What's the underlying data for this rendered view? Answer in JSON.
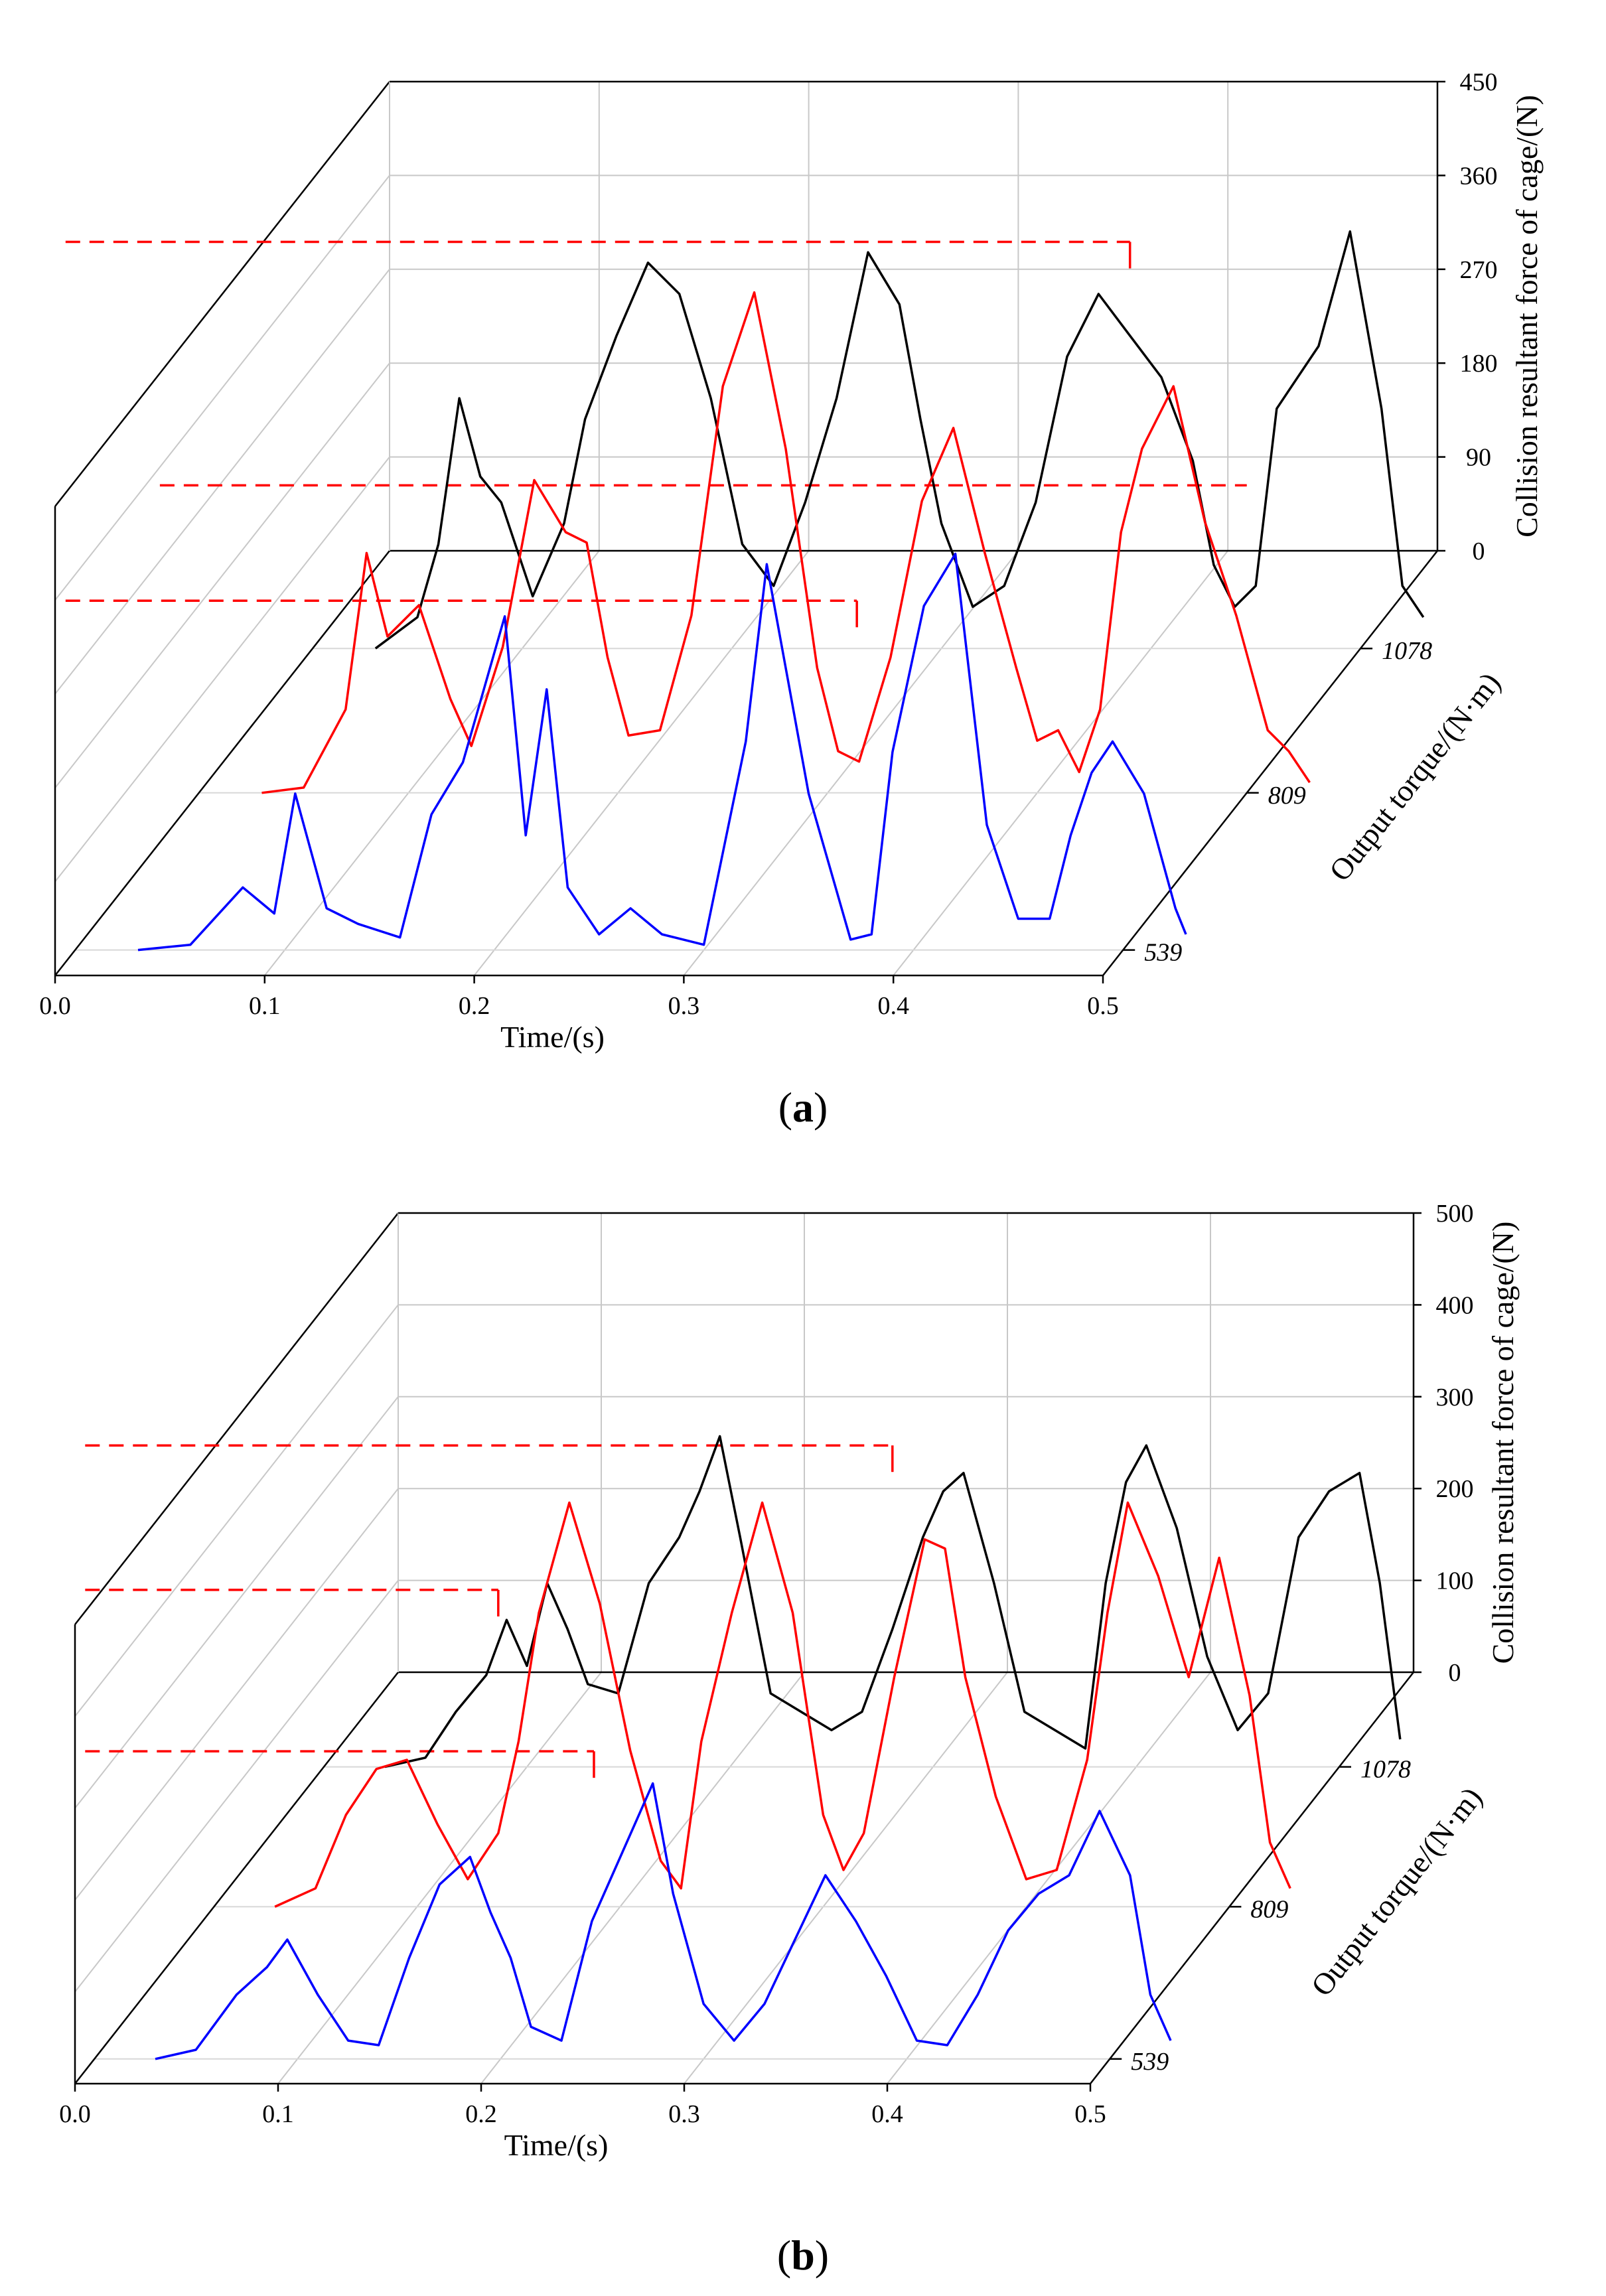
{
  "figure": {
    "panels": [
      "(a)",
      "(b)"
    ]
  },
  "chart_data": [
    {
      "panel": "a",
      "caption_letter": "a",
      "type": "line",
      "title": "",
      "xlabel": "Time/(s)",
      "ylabel": "Collision resultant force of cage/(N)",
      "zlabel": "Output torque/(N·m)",
      "xlim": [
        0,
        0.5
      ],
      "ylim": [
        0,
        450
      ],
      "x_ticks": [
        "0.0",
        "0.1",
        "0.2",
        "0.3",
        "0.4",
        "0.5"
      ],
      "y_ticks": [
        "0",
        "90",
        "180",
        "270",
        "360",
        "450"
      ],
      "categories": [
        "539",
        "809",
        "1078"
      ],
      "series": [
        {
          "name": "539",
          "color": "#0000ff",
          "dash_level": 335,
          "dash_end_t": 0.373,
          "x": [
            0.0,
            0.025,
            0.05,
            0.065,
            0.075,
            0.09,
            0.105,
            0.125,
            0.14,
            0.155,
            0.165,
            0.175,
            0.185,
            0.195,
            0.205,
            0.22,
            0.235,
            0.25,
            0.27,
            0.29,
            0.3,
            0.31,
            0.32,
            0.33,
            0.34,
            0.35,
            0.36,
            0.375,
            0.39,
            0.405,
            0.42,
            0.435,
            0.445,
            0.455,
            0.465,
            0.48,
            0.495,
            0.5
          ],
          "values": [
            0,
            5,
            60,
            35,
            150,
            40,
            25,
            12,
            130,
            180,
            250,
            320,
            110,
            250,
            60,
            15,
            40,
            15,
            5,
            200,
            370,
            260,
            150,
            80,
            10,
            15,
            190,
            330,
            380,
            120,
            30,
            30,
            110,
            170,
            200,
            150,
            40,
            15
          ]
        },
        {
          "name": "809",
          "color": "#ff0000",
          "dash_level": 295,
          "dash_end_t": 0.0,
          "x": [
            0.0,
            0.02,
            0.04,
            0.05,
            0.06,
            0.075,
            0.09,
            0.1,
            0.115,
            0.13,
            0.145,
            0.155,
            0.165,
            0.175,
            0.19,
            0.205,
            0.22,
            0.235,
            0.25,
            0.265,
            0.275,
            0.285,
            0.3,
            0.315,
            0.33,
            0.345,
            0.36,
            0.37,
            0.38,
            0.39,
            0.4,
            0.41,
            0.42,
            0.435,
            0.45,
            0.465,
            0.48,
            0.49,
            0.5
          ],
          "values": [
            0,
            5,
            80,
            230,
            150,
            180,
            90,
            45,
            140,
            300,
            250,
            240,
            130,
            55,
            60,
            170,
            390,
            480,
            330,
            120,
            40,
            30,
            130,
            280,
            350,
            230,
            120,
            50,
            60,
            20,
            80,
            250,
            330,
            390,
            260,
            170,
            60,
            40,
            10
          ]
        },
        {
          "name": "1078",
          "color": "#000000",
          "dash_level": 390,
          "dash_end_t": 0.39,
          "x": [
            0.0,
            0.02,
            0.03,
            0.04,
            0.05,
            0.06,
            0.075,
            0.09,
            0.1,
            0.115,
            0.13,
            0.145,
            0.16,
            0.175,
            0.19,
            0.205,
            0.22,
            0.235,
            0.25,
            0.26,
            0.27,
            0.285,
            0.3,
            0.315,
            0.33,
            0.345,
            0.36,
            0.375,
            0.39,
            0.4,
            0.41,
            0.42,
            0.43,
            0.44,
            0.45,
            0.465,
            0.48,
            0.49,
            0.5
          ],
          "values": [
            0,
            30,
            100,
            240,
            165,
            140,
            50,
            120,
            220,
            300,
            370,
            340,
            240,
            100,
            60,
            140,
            240,
            380,
            330,
            220,
            120,
            40,
            60,
            140,
            280,
            340,
            300,
            260,
            180,
            80,
            40,
            60,
            230,
            260,
            290,
            400,
            230,
            60,
            30
          ]
        }
      ]
    },
    {
      "panel": "b",
      "caption_letter": "b",
      "type": "line",
      "title": "",
      "xlabel": "Time/(s)",
      "ylabel": "Collision resultant force of cage/(N)",
      "zlabel": "Output torque/(N·m)",
      "xlim": [
        0,
        0.5
      ],
      "ylim": [
        0,
        500
      ],
      "x_ticks": [
        "0.0",
        "0.1",
        "0.2",
        "0.3",
        "0.4",
        "0.5"
      ],
      "y_ticks": [
        "0",
        "100",
        "200",
        "300",
        "400",
        "500"
      ],
      "categories": [
        "539",
        "809",
        "1078"
      ],
      "series": [
        {
          "name": "539",
          "color": "#0000ff",
          "dash_level": 335,
          "dash_end_t": 0.246,
          "x": [
            0.0,
            0.02,
            0.04,
            0.055,
            0.065,
            0.08,
            0.095,
            0.11,
            0.125,
            0.14,
            0.155,
            0.165,
            0.175,
            0.185,
            0.2,
            0.215,
            0.225,
            0.235,
            0.245,
            0.255,
            0.27,
            0.285,
            0.3,
            0.315,
            0.33,
            0.345,
            0.36,
            0.375,
            0.39,
            0.405,
            0.42,
            0.435,
            0.45,
            0.465,
            0.48,
            0.49,
            0.5
          ],
          "values": [
            0,
            10,
            70,
            100,
            130,
            70,
            20,
            15,
            110,
            190,
            220,
            160,
            110,
            35,
            20,
            150,
            200,
            250,
            300,
            180,
            60,
            20,
            60,
            130,
            200,
            150,
            90,
            20,
            15,
            70,
            140,
            180,
            200,
            270,
            200,
            70,
            20
          ]
        },
        {
          "name": "809",
          "color": "#ff0000",
          "dash_level": 345,
          "dash_end_t": 0.14,
          "x": [
            0.0,
            0.02,
            0.035,
            0.05,
            0.065,
            0.08,
            0.095,
            0.11,
            0.12,
            0.13,
            0.145,
            0.16,
            0.175,
            0.19,
            0.2,
            0.21,
            0.225,
            0.24,
            0.255,
            0.27,
            0.28,
            0.29,
            0.305,
            0.32,
            0.33,
            0.34,
            0.355,
            0.37,
            0.385,
            0.4,
            0.41,
            0.42,
            0.435,
            0.45,
            0.465,
            0.48,
            0.49,
            0.5
          ],
          "values": [
            0,
            20,
            100,
            150,
            160,
            90,
            30,
            80,
            180,
            320,
            440,
            330,
            170,
            50,
            20,
            180,
            320,
            440,
            320,
            100,
            40,
            80,
            250,
            400,
            390,
            250,
            120,
            30,
            40,
            160,
            320,
            440,
            360,
            250,
            380,
            230,
            70,
            20
          ]
        },
        {
          "name": "1078",
          "color": "#000000",
          "dash_level": 350,
          "dash_end_t": 0.28,
          "x": [
            0.0,
            0.02,
            0.035,
            0.05,
            0.06,
            0.07,
            0.08,
            0.09,
            0.1,
            0.115,
            0.13,
            0.145,
            0.155,
            0.165,
            0.175,
            0.19,
            0.205,
            0.22,
            0.235,
            0.25,
            0.265,
            0.275,
            0.285,
            0.3,
            0.315,
            0.33,
            0.345,
            0.355,
            0.365,
            0.375,
            0.39,
            0.405,
            0.42,
            0.435,
            0.45,
            0.465,
            0.48,
            0.49,
            0.5
          ],
          "values": [
            0,
            10,
            60,
            100,
            160,
            110,
            200,
            150,
            90,
            80,
            200,
            250,
            300,
            360,
            250,
            80,
            60,
            40,
            60,
            150,
            250,
            300,
            320,
            200,
            60,
            40,
            20,
            200,
            310,
            350,
            260,
            120,
            40,
            80,
            250,
            300,
            320,
            200,
            30
          ]
        }
      ]
    }
  ]
}
